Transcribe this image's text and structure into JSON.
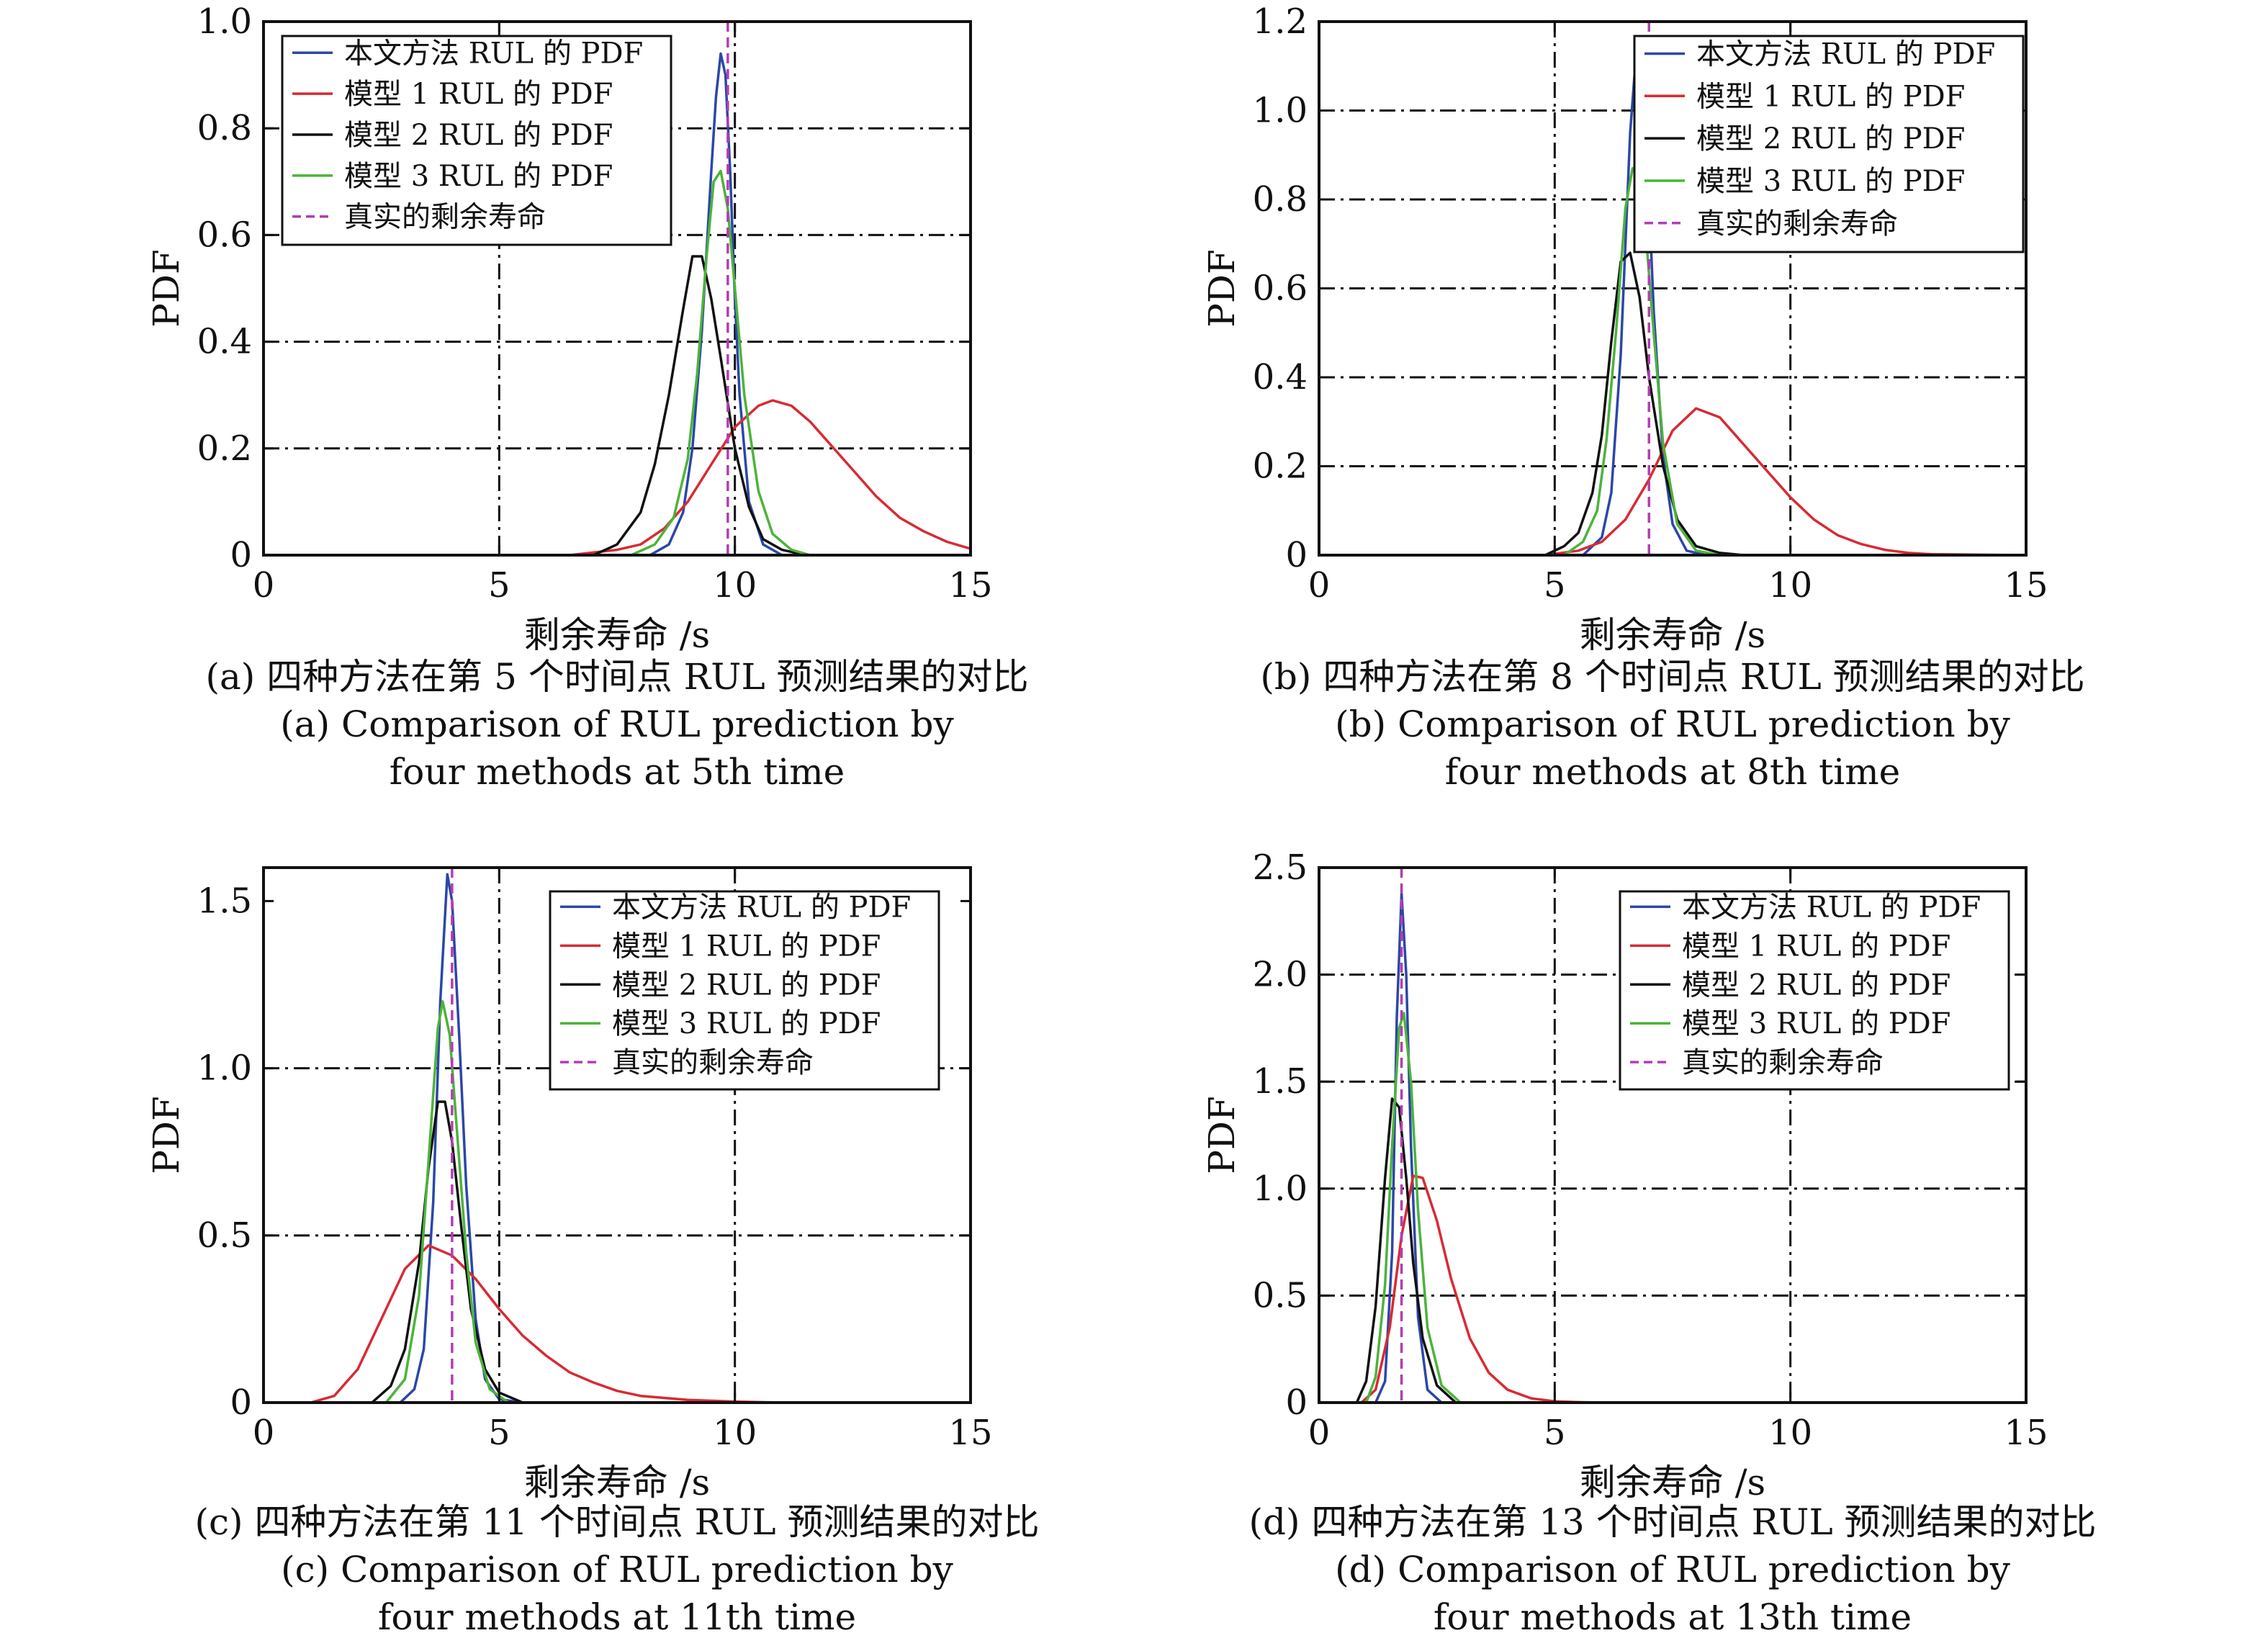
{
  "colors": {
    "proposed": "#2b47a8",
    "model1": "#d82a34",
    "model2": "#111111",
    "model3": "#4cb33a",
    "true_rul": "#b43cb4",
    "grid": "#111111"
  },
  "legend": {
    "proposed": "本文方法 RUL 的 PDF",
    "model1": "模型 1 RUL 的 PDF",
    "model2": "模型 2 RUL 的 PDF",
    "model3": "模型 3 RUL 的 PDF",
    "true_rul": "真实的剩余寿命"
  },
  "chart_data": [
    {
      "type": "line",
      "panel": "a",
      "legend_position": "top-left",
      "xlabel": "剩余寿命 /s",
      "ylabel": "PDF",
      "xlim": [
        0,
        15
      ],
      "ylim": [
        0,
        1.0
      ],
      "xticks": [
        0,
        5,
        10,
        15
      ],
      "xtick_labels": [
        "0",
        "5",
        "10",
        "15"
      ],
      "yticks": [
        0,
        0.2,
        0.4,
        0.6,
        0.8,
        1.0
      ],
      "ytick_labels": [
        "0",
        "0.2",
        "0.4",
        "0.6",
        "0.8",
        "1.0"
      ],
      "grid": true,
      "caption_cn": "(a) 四种方法在第 5 个时间点 RUL 预测结果的对比",
      "caption_en_1": "(a) Comparison of RUL prediction by",
      "caption_en_2": "four methods at 5th time",
      "true_rul": 9.85,
      "series": [
        {
          "key": "proposed",
          "x": [
            0,
            8.2,
            8.6,
            8.9,
            9.1,
            9.3,
            9.5,
            9.6,
            9.7,
            9.8,
            9.9,
            10.0,
            10.1,
            10.3,
            10.6,
            11.0,
            15
          ],
          "y": [
            0,
            0,
            0.02,
            0.08,
            0.2,
            0.42,
            0.72,
            0.86,
            0.94,
            0.9,
            0.72,
            0.48,
            0.3,
            0.1,
            0.02,
            0,
            0
          ]
        },
        {
          "key": "model1",
          "x": [
            0,
            6.5,
            7.5,
            8.0,
            8.5,
            9.0,
            9.5,
            10.0,
            10.5,
            10.8,
            11.2,
            11.6,
            12.0,
            12.5,
            13.0,
            13.5,
            14.0,
            14.5,
            15.0
          ],
          "y": [
            0,
            0,
            0.01,
            0.02,
            0.05,
            0.1,
            0.17,
            0.24,
            0.28,
            0.29,
            0.28,
            0.25,
            0.21,
            0.16,
            0.11,
            0.07,
            0.045,
            0.025,
            0.012
          ]
        },
        {
          "key": "model2",
          "x": [
            0,
            7.0,
            7.5,
            8.0,
            8.3,
            8.6,
            8.9,
            9.1,
            9.3,
            9.5,
            9.7,
            10.0,
            10.3,
            10.6,
            11.0,
            11.5,
            15
          ],
          "y": [
            0,
            0,
            0.02,
            0.08,
            0.17,
            0.3,
            0.46,
            0.56,
            0.56,
            0.48,
            0.37,
            0.2,
            0.09,
            0.03,
            0.01,
            0,
            0
          ]
        },
        {
          "key": "model3",
          "x": [
            0,
            7.8,
            8.3,
            8.7,
            9.0,
            9.2,
            9.4,
            9.55,
            9.7,
            9.85,
            10.0,
            10.2,
            10.5,
            10.8,
            11.2,
            11.6,
            15
          ],
          "y": [
            0,
            0,
            0.02,
            0.07,
            0.18,
            0.34,
            0.56,
            0.7,
            0.72,
            0.65,
            0.5,
            0.3,
            0.12,
            0.04,
            0.01,
            0,
            0
          ]
        }
      ]
    },
    {
      "type": "line",
      "panel": "b",
      "legend_position": "top-right",
      "xlabel": "剩余寿命 /s",
      "ylabel": "PDF",
      "xlim": [
        0,
        15
      ],
      "ylim": [
        0,
        1.2
      ],
      "xticks": [
        0,
        5,
        10,
        15
      ],
      "xtick_labels": [
        "0",
        "5",
        "10",
        "15"
      ],
      "yticks": [
        0,
        0.2,
        0.4,
        0.6,
        0.8,
        1.0,
        1.2
      ],
      "ytick_labels": [
        "0",
        "0.2",
        "0.4",
        "0.6",
        "0.8",
        "1.0",
        "1.2"
      ],
      "grid": true,
      "caption_cn": "(b) 四种方法在第 8 个时间点 RUL 预测结果的对比",
      "caption_en_1": "(b) Comparison of RUL prediction by",
      "caption_en_2": "four methods at 8th time",
      "true_rul": 7.0,
      "series": [
        {
          "key": "proposed",
          "x": [
            0,
            5.6,
            6.0,
            6.2,
            6.4,
            6.6,
            6.75,
            6.9,
            7.0,
            7.1,
            7.3,
            7.5,
            7.8,
            8.2,
            15
          ],
          "y": [
            0,
            0,
            0.04,
            0.14,
            0.45,
            0.95,
            1.16,
            1.06,
            0.8,
            0.55,
            0.22,
            0.07,
            0.01,
            0,
            0
          ]
        },
        {
          "key": "model1",
          "x": [
            0,
            4.8,
            5.5,
            6.0,
            6.5,
            7.0,
            7.5,
            8.0,
            8.5,
            9.0,
            9.5,
            10.0,
            10.5,
            11.0,
            11.5,
            12.0,
            12.5,
            13.0,
            15
          ],
          "y": [
            0,
            0,
            0.01,
            0.03,
            0.08,
            0.17,
            0.28,
            0.33,
            0.31,
            0.25,
            0.19,
            0.13,
            0.08,
            0.045,
            0.025,
            0.012,
            0.005,
            0.002,
            0
          ]
        },
        {
          "key": "model2",
          "x": [
            0,
            4.8,
            5.2,
            5.5,
            5.8,
            6.0,
            6.2,
            6.4,
            6.6,
            6.8,
            7.0,
            7.3,
            7.6,
            8.0,
            8.5,
            9.0,
            15
          ],
          "y": [
            0,
            0,
            0.02,
            0.05,
            0.14,
            0.27,
            0.48,
            0.66,
            0.68,
            0.58,
            0.4,
            0.2,
            0.08,
            0.02,
            0.005,
            0,
            0
          ]
        },
        {
          "key": "model3",
          "x": [
            0,
            5.2,
            5.6,
            5.9,
            6.1,
            6.3,
            6.5,
            6.65,
            6.8,
            6.95,
            7.1,
            7.3,
            7.6,
            8.0,
            8.5,
            15
          ],
          "y": [
            0,
            0,
            0.03,
            0.1,
            0.26,
            0.5,
            0.78,
            0.87,
            0.85,
            0.7,
            0.5,
            0.25,
            0.07,
            0.01,
            0,
            0
          ]
        }
      ]
    },
    {
      "type": "line",
      "panel": "c",
      "legend_position": "top-right",
      "xlabel": "剩余寿命 /s",
      "ylabel": "PDF",
      "xlim": [
        0,
        15
      ],
      "ylim": [
        0,
        1.6
      ],
      "xticks": [
        0,
        5,
        10,
        15
      ],
      "xtick_labels": [
        "0",
        "5",
        "10",
        "15"
      ],
      "yticks": [
        0,
        0.5,
        1.0,
        1.5
      ],
      "ytick_labels": [
        "0",
        "0.5",
        "1.0",
        "1.5"
      ],
      "grid": true,
      "caption_cn": "(c) 四种方法在第 11 个时间点 RUL 预测结果的对比",
      "caption_en_1": "(c) Comparison of RUL prediction by",
      "caption_en_2": "four methods at 11th time",
      "true_rul": 4.0,
      "series": [
        {
          "key": "proposed",
          "x": [
            0,
            2.9,
            3.2,
            3.4,
            3.6,
            3.75,
            3.9,
            4.0,
            4.15,
            4.3,
            4.5,
            4.7,
            5.0,
            5.5,
            15
          ],
          "y": [
            0,
            0,
            0.04,
            0.16,
            0.6,
            1.2,
            1.58,
            1.5,
            1.1,
            0.65,
            0.25,
            0.07,
            0.01,
            0,
            0
          ]
        },
        {
          "key": "model1",
          "x": [
            0,
            1.0,
            1.5,
            2.0,
            2.5,
            3.0,
            3.5,
            4.0,
            4.5,
            5.0,
            5.5,
            6.0,
            6.5,
            7.0,
            7.5,
            8.0,
            9.0,
            10.0,
            11.0,
            15
          ],
          "y": [
            0,
            0,
            0.02,
            0.1,
            0.25,
            0.4,
            0.47,
            0.44,
            0.37,
            0.28,
            0.2,
            0.14,
            0.09,
            0.06,
            0.035,
            0.02,
            0.008,
            0.003,
            0,
            0
          ]
        },
        {
          "key": "model2",
          "x": [
            0,
            2.3,
            2.7,
            3.0,
            3.3,
            3.5,
            3.7,
            3.85,
            4.0,
            4.2,
            4.4,
            4.7,
            5.0,
            5.5,
            15
          ],
          "y": [
            0,
            0,
            0.05,
            0.16,
            0.42,
            0.7,
            0.9,
            0.9,
            0.78,
            0.52,
            0.28,
            0.1,
            0.03,
            0,
            0
          ]
        },
        {
          "key": "model3",
          "x": [
            0,
            2.6,
            3.0,
            3.3,
            3.5,
            3.7,
            3.8,
            3.95,
            4.1,
            4.3,
            4.5,
            4.8,
            5.2,
            15
          ],
          "y": [
            0,
            0,
            0.07,
            0.32,
            0.72,
            1.12,
            1.2,
            1.1,
            0.82,
            0.45,
            0.18,
            0.04,
            0,
            0
          ]
        }
      ]
    },
    {
      "type": "line",
      "panel": "d",
      "legend_position": "top-right",
      "xlabel": "剩余寿命 /s",
      "ylabel": "PDF",
      "xlim": [
        0,
        15
      ],
      "ylim": [
        0,
        2.5
      ],
      "xticks": [
        0,
        5,
        10,
        15
      ],
      "xtick_labels": [
        "0",
        "5",
        "10",
        "15"
      ],
      "yticks": [
        0,
        0.5,
        1.0,
        1.5,
        2.0,
        2.5
      ],
      "ytick_labels": [
        "0",
        "0.5",
        "1.0",
        "1.5",
        "2.0",
        "2.5"
      ],
      "grid": true,
      "caption_cn": "(d) 四种方法在第 13 个时间点 RUL 预测结果的对比",
      "caption_en_1": "(d) Comparison of RUL prediction by",
      "caption_en_2": "four methods at 13th time",
      "true_rul": 1.75,
      "series": [
        {
          "key": "proposed",
          "x": [
            0,
            1.2,
            1.4,
            1.55,
            1.65,
            1.75,
            1.85,
            1.95,
            2.1,
            2.3,
            2.6,
            15
          ],
          "y": [
            0,
            0,
            0.1,
            0.7,
            1.8,
            2.38,
            2.0,
            1.2,
            0.4,
            0.06,
            0,
            0
          ]
        },
        {
          "key": "model1",
          "x": [
            0,
            0.9,
            1.2,
            1.5,
            1.75,
            2.0,
            2.2,
            2.5,
            2.8,
            3.2,
            3.6,
            4.0,
            4.5,
            5.0,
            5.5,
            6.0,
            15
          ],
          "y": [
            0,
            0,
            0.06,
            0.35,
            0.78,
            1.06,
            1.05,
            0.85,
            0.58,
            0.3,
            0.14,
            0.06,
            0.02,
            0.006,
            0.002,
            0,
            0
          ]
        },
        {
          "key": "model2",
          "x": [
            0,
            0.8,
            1.0,
            1.2,
            1.4,
            1.55,
            1.7,
            1.85,
            2.0,
            2.2,
            2.5,
            2.9,
            15
          ],
          "y": [
            0,
            0,
            0.1,
            0.45,
            1.05,
            1.42,
            1.38,
            1.05,
            0.65,
            0.3,
            0.08,
            0,
            0
          ]
        },
        {
          "key": "model3",
          "x": [
            0,
            1.0,
            1.2,
            1.4,
            1.55,
            1.7,
            1.8,
            1.95,
            2.1,
            2.3,
            2.6,
            3.0,
            15
          ],
          "y": [
            0,
            0,
            0.12,
            0.55,
            1.2,
            1.75,
            1.82,
            1.5,
            0.9,
            0.35,
            0.08,
            0,
            0
          ]
        }
      ]
    }
  ]
}
